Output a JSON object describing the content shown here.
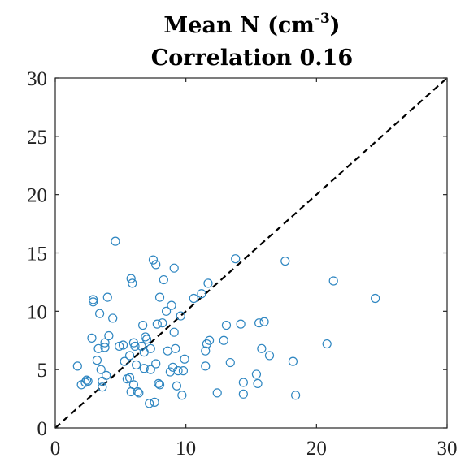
{
  "chart_data": {
    "type": "scatter",
    "title_main": "Mean N (cm",
    "title_sup": "-3",
    "title_close": ")",
    "subtitle": "Correlation 0.16",
    "xlabel": "",
    "ylabel": "",
    "xlim": [
      0,
      30
    ],
    "ylim": [
      0,
      30
    ],
    "xticks": [
      "0",
      "10",
      "20",
      "30"
    ],
    "yticks": [
      "0",
      "5",
      "10",
      "15",
      "20",
      "25",
      "30"
    ],
    "grid": false,
    "box": true,
    "reference_line": "y = x",
    "marker_color": "#2e86c1",
    "points": [
      [
        1.7,
        5.3
      ],
      [
        2.0,
        3.7
      ],
      [
        2.3,
        3.9
      ],
      [
        2.4,
        4.1
      ],
      [
        2.5,
        4.0
      ],
      [
        2.8,
        7.7
      ],
      [
        2.9,
        11.0
      ],
      [
        2.9,
        10.8
      ],
      [
        3.2,
        5.8
      ],
      [
        3.3,
        6.8
      ],
      [
        3.4,
        9.8
      ],
      [
        3.5,
        5.0
      ],
      [
        3.6,
        4.0
      ],
      [
        3.6,
        3.5
      ],
      [
        3.8,
        7.3
      ],
      [
        3.8,
        6.9
      ],
      [
        3.9,
        4.5
      ],
      [
        4.0,
        11.2
      ],
      [
        4.1,
        7.9
      ],
      [
        4.4,
        9.4
      ],
      [
        4.6,
        16.0
      ],
      [
        4.9,
        7.0
      ],
      [
        5.2,
        7.1
      ],
      [
        5.3,
        5.7
      ],
      [
        5.5,
        4.2
      ],
      [
        5.7,
        4.3
      ],
      [
        5.7,
        6.2
      ],
      [
        5.8,
        3.1
      ],
      [
        5.8,
        12.8
      ],
      [
        5.9,
        12.4
      ],
      [
        6.0,
        3.7
      ],
      [
        6.0,
        7.3
      ],
      [
        6.1,
        7.0
      ],
      [
        6.2,
        5.4
      ],
      [
        6.3,
        3.1
      ],
      [
        6.4,
        3.0
      ],
      [
        6.6,
        7.0
      ],
      [
        6.7,
        8.8
      ],
      [
        6.8,
        6.5
      ],
      [
        6.8,
        5.1
      ],
      [
        6.9,
        7.8
      ],
      [
        7.0,
        7.6
      ],
      [
        7.2,
        2.1
      ],
      [
        7.3,
        6.8
      ],
      [
        7.3,
        5.0
      ],
      [
        7.5,
        14.4
      ],
      [
        7.6,
        2.2
      ],
      [
        7.7,
        14.0
      ],
      [
        7.7,
        5.5
      ],
      [
        7.8,
        8.9
      ],
      [
        7.9,
        3.8
      ],
      [
        8.0,
        11.2
      ],
      [
        8.0,
        3.7
      ],
      [
        8.2,
        9.0
      ],
      [
        8.3,
        12.7
      ],
      [
        8.5,
        10.0
      ],
      [
        8.6,
        6.6
      ],
      [
        8.8,
        4.8
      ],
      [
        8.9,
        10.5
      ],
      [
        9.0,
        5.2
      ],
      [
        9.1,
        8.2
      ],
      [
        9.1,
        13.7
      ],
      [
        9.2,
        6.8
      ],
      [
        9.3,
        3.6
      ],
      [
        9.4,
        4.9
      ],
      [
        9.6,
        9.6
      ],
      [
        9.7,
        2.8
      ],
      [
        9.8,
        4.9
      ],
      [
        9.9,
        5.9
      ],
      [
        10.6,
        11.1
      ],
      [
        11.2,
        11.5
      ],
      [
        11.5,
        5.3
      ],
      [
        11.5,
        6.6
      ],
      [
        11.6,
        7.2
      ],
      [
        11.7,
        12.4
      ],
      [
        11.8,
        7.5
      ],
      [
        12.4,
        3.0
      ],
      [
        12.9,
        7.5
      ],
      [
        13.1,
        8.8
      ],
      [
        13.4,
        5.6
      ],
      [
        13.8,
        14.5
      ],
      [
        14.2,
        8.9
      ],
      [
        14.4,
        2.9
      ],
      [
        14.4,
        3.9
      ],
      [
        15.4,
        4.6
      ],
      [
        15.5,
        3.8
      ],
      [
        15.6,
        9.0
      ],
      [
        15.8,
        6.8
      ],
      [
        16.0,
        9.1
      ],
      [
        16.4,
        6.2
      ],
      [
        17.6,
        14.3
      ],
      [
        18.2,
        5.7
      ],
      [
        18.4,
        2.8
      ],
      [
        20.8,
        7.2
      ],
      [
        21.3,
        12.6
      ],
      [
        24.5,
        11.1
      ]
    ]
  }
}
